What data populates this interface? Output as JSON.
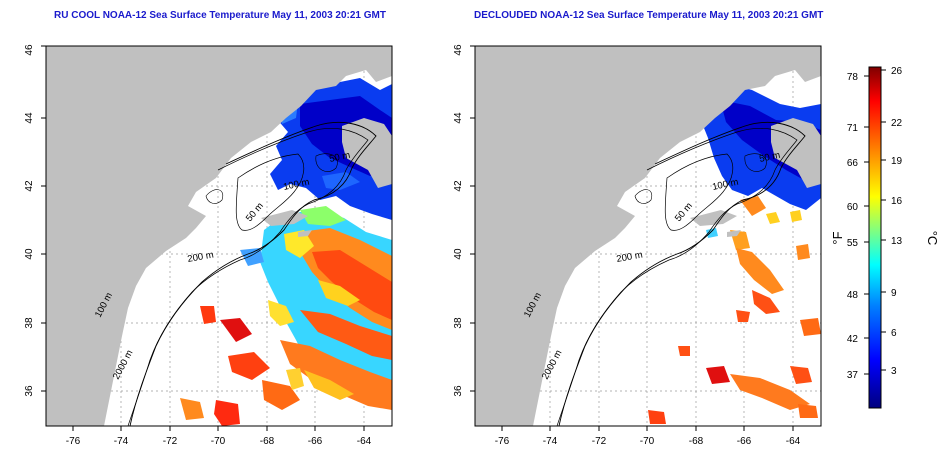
{
  "left_map": {
    "title": "RU COOL NOAA-12 Sea Surface Temperature May 11, 2003 20:21 GMT",
    "x_ticks": [
      "-76",
      "-74",
      "-72",
      "-70",
      "-68",
      "-66",
      "-64"
    ],
    "y_ticks": [
      "36",
      "38",
      "40",
      "42",
      "44",
      "46"
    ],
    "isobath_labels": [
      "50 m",
      "100 m",
      "200 m",
      "50 m",
      "2000 m",
      "100 m"
    ]
  },
  "right_map": {
    "title": "DECLOUDED NOAA-12 Sea Surface Temperature May 11, 2003 20:21 GMT",
    "x_ticks": [
      "-76",
      "-74",
      "-72",
      "-70",
      "-68",
      "-66",
      "-64"
    ],
    "y_ticks": [
      "36",
      "38",
      "40",
      "42",
      "44",
      "46"
    ],
    "isobath_labels": [
      "50 m",
      "100 m",
      "200 m",
      "50 m",
      "2000 m",
      "100 m"
    ]
  },
  "colorbar": {
    "fahrenheit_ticks": [
      "78",
      "71",
      "66",
      "60",
      "55",
      "48",
      "42",
      "37"
    ],
    "celsius_ticks": [
      "26",
      "22",
      "19",
      "16",
      "13",
      "9",
      "6",
      "3"
    ],
    "fahrenheit_unit": "°F",
    "celsius_unit": "°C",
    "colors": [
      "#00007f",
      "#0000ff",
      "#0080ff",
      "#00ffff",
      "#80ff80",
      "#ffff00",
      "#ff8000",
      "#ff0000",
      "#7f0000"
    ]
  },
  "colors": {
    "land": "#c0c0c0",
    "title": "#1a1acc",
    "isobath": "#000000"
  }
}
